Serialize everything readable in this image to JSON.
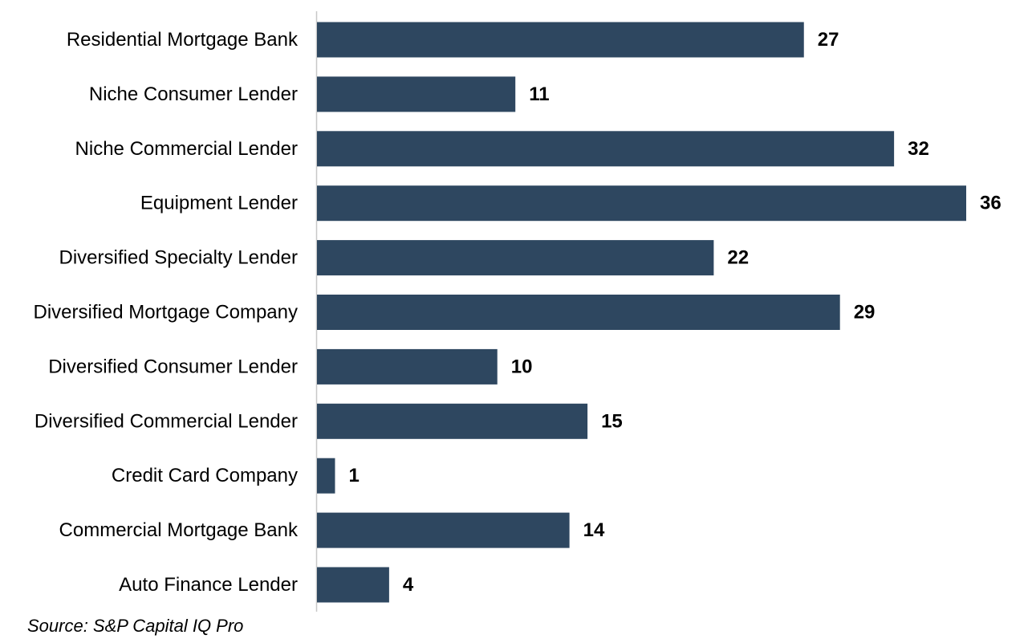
{
  "chart_data": {
    "type": "bar",
    "orientation": "horizontal",
    "categories": [
      "Residential Mortgage Bank",
      "Niche Consumer Lender",
      "Niche Commercial Lender",
      "Equipment Lender",
      "Diversified Specialty Lender",
      "Diversified Mortgage Company",
      "Diversified Consumer Lender",
      "Diversified Commercial Lender",
      "Credit Card Company",
      "Commercial Mortgage Bank",
      "Auto Finance Lender"
    ],
    "values": [
      27,
      11,
      32,
      36,
      22,
      29,
      10,
      15,
      1,
      14,
      4
    ],
    "data_labels": [
      "27",
      "11",
      "32",
      "36",
      "22",
      "29",
      "10",
      "15",
      "1",
      "14",
      "4"
    ],
    "xlim": [
      0,
      36
    ],
    "grid": false,
    "bar_color": "#2e4760",
    "axis_color": "#c8c8c8"
  },
  "source": "Source: S&P Capital IQ Pro"
}
